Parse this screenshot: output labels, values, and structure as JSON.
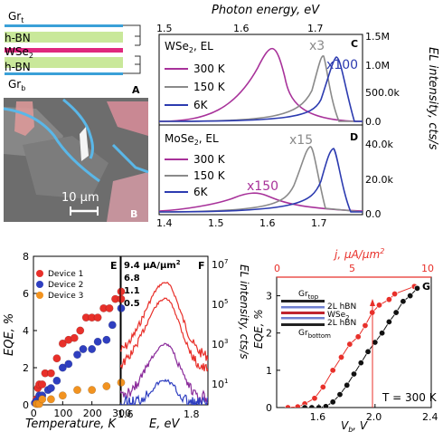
{
  "panelA": {
    "letter": "A",
    "gr_top": "Gr",
    "gr_top_sub": "t",
    "hbn_top": "h-BN",
    "wse2": "WSe",
    "wse2_sub": "2",
    "hbn_bottom": "h-BN",
    "gr_bottom": "Gr",
    "gr_bottom_sub": "b",
    "colors": {
      "graphene": "#3aa0d8",
      "hbn": "#c9e89a",
      "wse2": "#e0287e"
    }
  },
  "panelB": {
    "letter": "B",
    "scalebar": "10 μm"
  },
  "topAxis": {
    "label": "Photon energy, eV",
    "ticks": [
      "1.5",
      "1.6",
      "1.7"
    ]
  },
  "panelC": {
    "letter": "C",
    "title": "WSe",
    "title_sub": "2",
    "title_suffix": ", EL",
    "legend": [
      "300 K",
      "150 K",
      "6K"
    ],
    "annotations": [
      "x3",
      "x100"
    ],
    "yticks": [
      "1.5M",
      "1.0M",
      "500.0k",
      "0.0"
    ]
  },
  "panelD": {
    "letter": "D",
    "title": "MoSe",
    "title_sub": "2",
    "title_suffix": ", EL",
    "legend": [
      "300 K",
      "150 K",
      "6K"
    ],
    "annotations": [
      "x15",
      "x150"
    ],
    "yticks": [
      "40.0k",
      "20.0k",
      "0.0"
    ],
    "xticks": [
      "1.4",
      "1.5",
      "1.6",
      "1.7"
    ]
  },
  "elAxisLabel": "EL intensity, cts/s",
  "panelE": {
    "letter": "E",
    "ylabel": "EQE, %",
    "xlabel": "Temperature, K",
    "yticks": [
      "0",
      "2",
      "4",
      "6",
      "8"
    ],
    "xticks": [
      "0",
      "100",
      "200",
      "300"
    ],
    "legend": [
      "Device 1",
      "Device 2",
      "Device 3"
    ]
  },
  "panelF": {
    "letter": "F",
    "labels": [
      "9.4 μA/μm",
      "6.8",
      "1.1",
      "0.5"
    ],
    "label_sup": "2",
    "xlabel": "E, eV",
    "xticks": [
      "1.6",
      "1.8"
    ],
    "yticks_exp": [
      "7",
      "5",
      "3",
      "1"
    ],
    "yticks_base": "10",
    "ylabel": "EL intensity, cts/s"
  },
  "panelG": {
    "letter": "G",
    "top_label": "j, μA/μm",
    "top_label_sup": "2",
    "top_ticks": [
      "0",
      "5",
      "10"
    ],
    "ylabel": "EQE, %",
    "yticks": [
      "0",
      "1",
      "2",
      "3"
    ],
    "xticks": [
      "1.6",
      "2.0",
      "2.4"
    ],
    "xlabel": "V",
    "xlabel_sub": "b",
    "xlabel_suffix": ", V",
    "temp": "T = 300 K",
    "inset": {
      "gr_top": "Gr",
      "gr_top_sub": "top",
      "hbn1": "2L hBN",
      "wse2": "WSe",
      "wse2_sub": "2",
      "hbn2": "2L hBN",
      "gr_bottom": "Gr",
      "gr_bottom_sub": "bottom"
    }
  },
  "chart_data": [
    {
      "type": "scatter",
      "panel": "E",
      "xlabel": "Temperature, K",
      "ylabel": "EQE, %",
      "xlim": [
        0,
        300
      ],
      "ylim": [
        0,
        8
      ],
      "series": [
        {
          "name": "Device 1",
          "color": "#e8302a",
          "x": [
            10,
            15,
            20,
            30,
            40,
            60,
            80,
            100,
            120,
            140,
            160,
            180,
            200,
            220,
            240,
            260,
            280,
            300,
            300
          ],
          "y": [
            0.3,
            0.9,
            1.1,
            1.1,
            1.7,
            1.7,
            2.5,
            3.3,
            3.5,
            3.6,
            4.0,
            4.7,
            4.7,
            4.7,
            5.2,
            5.2,
            5.7,
            5.7,
            6.1
          ]
        },
        {
          "name": "Device 2",
          "color": "#2f3fc0",
          "x": [
            5,
            10,
            20,
            30,
            50,
            60,
            80,
            100,
            120,
            150,
            170,
            200,
            220,
            250,
            270,
            300
          ],
          "y": [
            0.1,
            0.2,
            0.5,
            0.5,
            0.8,
            0.9,
            1.3,
            2.0,
            2.2,
            2.7,
            3.0,
            3.0,
            3.4,
            3.5,
            4.3,
            5.2
          ]
        },
        {
          "name": "Device 3",
          "color": "#f29320",
          "x": [
            10,
            15,
            20,
            30,
            60,
            100,
            150,
            200,
            250,
            300
          ],
          "y": [
            0.05,
            0.05,
            0.05,
            0.3,
            0.3,
            0.5,
            0.8,
            0.8,
            1.0,
            1.2
          ]
        }
      ]
    },
    {
      "type": "line",
      "panel": "G",
      "xlabel": "V_b, V",
      "ylabel": "EQE, %",
      "xlim": [
        1.3,
        2.4
      ],
      "ylim": [
        0,
        3.5
      ],
      "series": [
        {
          "color": "#e8302a",
          "x": [
            1.38,
            1.45,
            1.5,
            1.57,
            1.63,
            1.7,
            1.76,
            1.82,
            1.88,
            1.93,
            1.98,
            2.03,
            2.1,
            2.14,
            2.28
          ],
          "y": [
            0.0,
            0.02,
            0.1,
            0.25,
            0.55,
            1.0,
            1.35,
            1.7,
            1.9,
            2.2,
            2.55,
            2.75,
            2.9,
            3.05,
            3.25
          ]
        },
        {
          "color": "#111111",
          "x": [
            1.5,
            1.55,
            1.6,
            1.65,
            1.7,
            1.75,
            1.8,
            1.85,
            1.9,
            1.95,
            2.0,
            2.05,
            2.1,
            2.15,
            2.2,
            2.25,
            2.3
          ],
          "y": [
            0.0,
            0.0,
            0.0,
            0.03,
            0.15,
            0.35,
            0.6,
            0.9,
            1.2,
            1.5,
            1.75,
            2.0,
            2.3,
            2.55,
            2.85,
            3.0,
            3.2
          ]
        }
      ]
    }
  ]
}
